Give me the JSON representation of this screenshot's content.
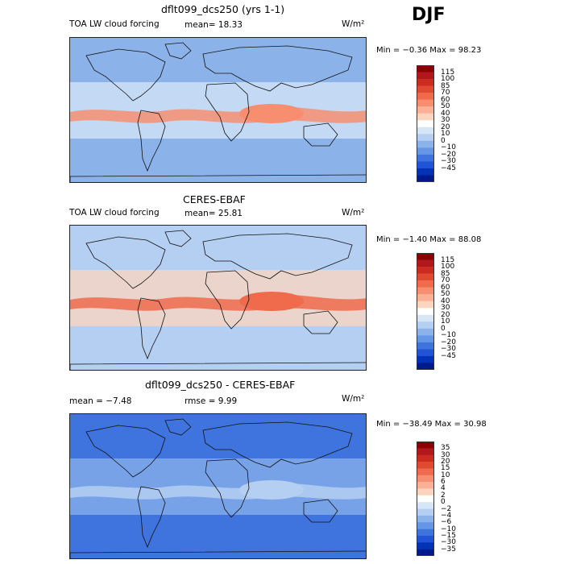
{
  "season": "DJF",
  "panels": [
    {
      "title": "dflt099_dcs250 (yrs 1-1)",
      "left_label": "TOA LW cloud forcing",
      "mid_label": "mean=  18.33",
      "units": "W/m²",
      "minmax": "Min =  −0.36  Max =  98.23",
      "colorbar": {
        "labels": [
          "115",
          "100",
          "85",
          "70",
          "60",
          "50",
          "40",
          "30",
          "20",
          "10",
          "0",
          "−10",
          "−20",
          "−30",
          "−45"
        ],
        "colors": [
          "#8b0000",
          "#b2171b",
          "#cc2b20",
          "#e04a30",
          "#ef6b4c",
          "#f78e70",
          "#fbb196",
          "#fdd5bf",
          "#ffffff",
          "#d6e6f7",
          "#b4cff1",
          "#8cb2ea",
          "#6697e6",
          "#3f74df",
          "#1f55d6",
          "#0033b8",
          "#001a8c"
        ]
      },
      "map": {
        "ocean": "#8cb2ea",
        "tropics": "#f78e70",
        "subtropics": "#d6e6f7"
      }
    },
    {
      "title": "CERES-EBAF",
      "left_label": "TOA LW cloud forcing",
      "mid_label": "mean=  25.81",
      "units": "W/m²",
      "minmax": "Min =  −1.40  Max =  88.08",
      "colorbar": {
        "labels": [
          "115",
          "100",
          "85",
          "70",
          "60",
          "50",
          "40",
          "30",
          "20",
          "10",
          "0",
          "−10",
          "−20",
          "−30",
          "−45"
        ],
        "colors": [
          "#8b0000",
          "#b2171b",
          "#cc2b20",
          "#e04a30",
          "#ef6b4c",
          "#f78e70",
          "#fbb196",
          "#fdd5bf",
          "#ffffff",
          "#d6e6f7",
          "#b4cff1",
          "#8cb2ea",
          "#6697e6",
          "#3f74df",
          "#1f55d6",
          "#0033b8",
          "#001a8c"
        ]
      },
      "map": {
        "ocean": "#b4cff1",
        "tropics": "#ef6b4c",
        "subtropics": "#fdd5bf"
      }
    },
    {
      "title": "dflt099_dcs250 - CERES-EBAF",
      "left_label": "mean =  −7.48",
      "mid_label": "rmse =   9.99",
      "units": "W/m²",
      "minmax": "Min = −38.49  Max =  30.98",
      "colorbar": {
        "labels": [
          "35",
          "30",
          "20",
          "15",
          "10",
          "6",
          "4",
          "2",
          "0",
          "−2",
          "−4",
          "−6",
          "−10",
          "−15",
          "−30",
          "−35"
        ],
        "colors": [
          "#8b0000",
          "#b2171b",
          "#cc2b20",
          "#e04a30",
          "#ef6b4c",
          "#f78e70",
          "#fbb196",
          "#fdd5bf",
          "#ffffff",
          "#d6e6f7",
          "#b4cff1",
          "#8cb2ea",
          "#6697e6",
          "#3f74df",
          "#1f55d6",
          "#0033b8",
          "#001a8c"
        ]
      },
      "map": {
        "ocean": "#3f74df",
        "tropics": "#b4cff1",
        "subtropics": "#8cb2ea"
      }
    }
  ],
  "chart_data": [
    {
      "type": "heatmap",
      "title": "dflt099_dcs250 (yrs 1-1)",
      "variable": "TOA LW cloud forcing",
      "season": "DJF",
      "units": "W/m²",
      "mean": 18.33,
      "min": -0.36,
      "max": 98.23,
      "contour_levels": [
        -45,
        -30,
        -20,
        -10,
        0,
        10,
        20,
        30,
        40,
        50,
        60,
        70,
        85,
        100,
        115
      ]
    },
    {
      "type": "heatmap",
      "title": "CERES-EBAF",
      "variable": "TOA LW cloud forcing",
      "season": "DJF",
      "units": "W/m²",
      "mean": 25.81,
      "min": -1.4,
      "max": 88.08,
      "contour_levels": [
        -45,
        -30,
        -20,
        -10,
        0,
        10,
        20,
        30,
        40,
        50,
        60,
        70,
        85,
        100,
        115
      ]
    },
    {
      "type": "heatmap",
      "title": "dflt099_dcs250 - CERES-EBAF",
      "season": "DJF",
      "units": "W/m²",
      "mean": -7.48,
      "rmse": 9.99,
      "min": -38.49,
      "max": 30.98,
      "contour_levels": [
        -35,
        -30,
        -15,
        -10,
        -6,
        -4,
        -2,
        0,
        2,
        4,
        6,
        10,
        15,
        20,
        30,
        35
      ]
    }
  ]
}
